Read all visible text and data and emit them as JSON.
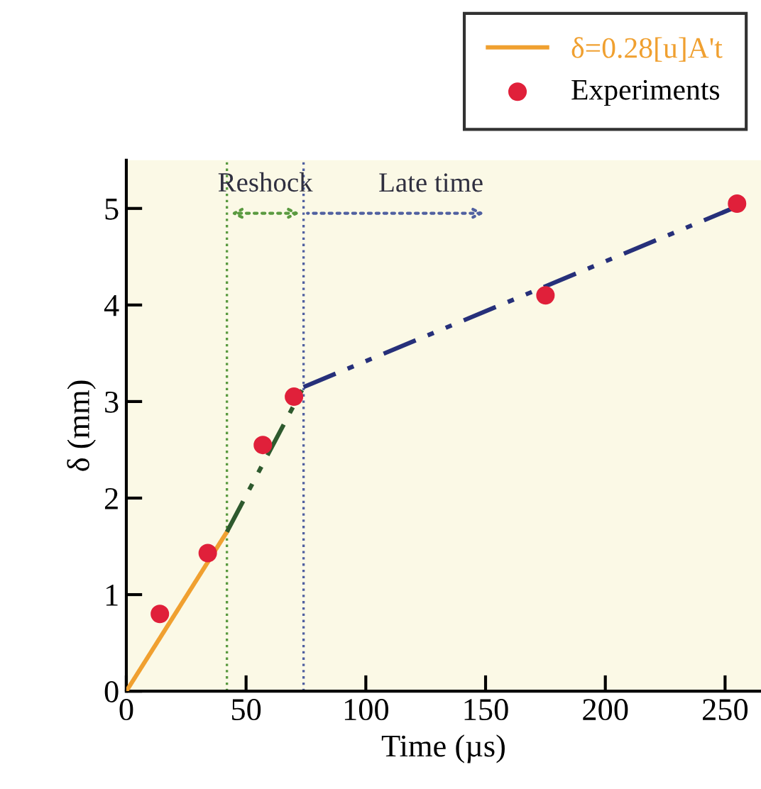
{
  "chart_data": {
    "type": "line",
    "xlabel": "Time (µs)",
    "ylabel": "δ (mm)",
    "xlim": [
      0,
      265
    ],
    "ylim": [
      0,
      5.5
    ],
    "xticks": [
      0,
      50,
      100,
      150,
      200,
      250
    ],
    "yticks": [
      0,
      1,
      2,
      3,
      4,
      5
    ],
    "grid": false,
    "legend": "top right",
    "series": [
      {
        "name": "δ=0.28[u]A't",
        "color": "#f0a030",
        "line_style": "solid",
        "x": [
          0,
          42
        ],
        "values": [
          0,
          1.65
        ]
      },
      {
        "color": "#2e5a2e",
        "line_style": "dashdot",
        "x": [
          42,
          74
        ],
        "values": [
          1.65,
          3.15
        ]
      },
      {
        "color": "#26307a",
        "line_style": "dashdot",
        "x": [
          74,
          255
        ],
        "values": [
          3.15,
          5.02
        ]
      },
      {
        "name": "Experiments",
        "type": "scatter",
        "marker": "circle",
        "color": "#e0203a",
        "x": [
          14,
          34,
          57,
          70,
          175,
          255
        ],
        "values": [
          0.8,
          1.43,
          2.55,
          3.05,
          4.1,
          5.05
        ]
      }
    ],
    "ref_lines": [
      {
        "axis": "x",
        "value": 42,
        "color": "#5a9a40",
        "line_style": "dotted"
      },
      {
        "axis": "x",
        "value": 74,
        "color": "#5060a0",
        "line_style": "dotted"
      }
    ],
    "annotations": [
      "Reshock",
      {
        "text": "Late time",
        "x": 74,
        "y": 4.95
      }
    ]
  }
}
